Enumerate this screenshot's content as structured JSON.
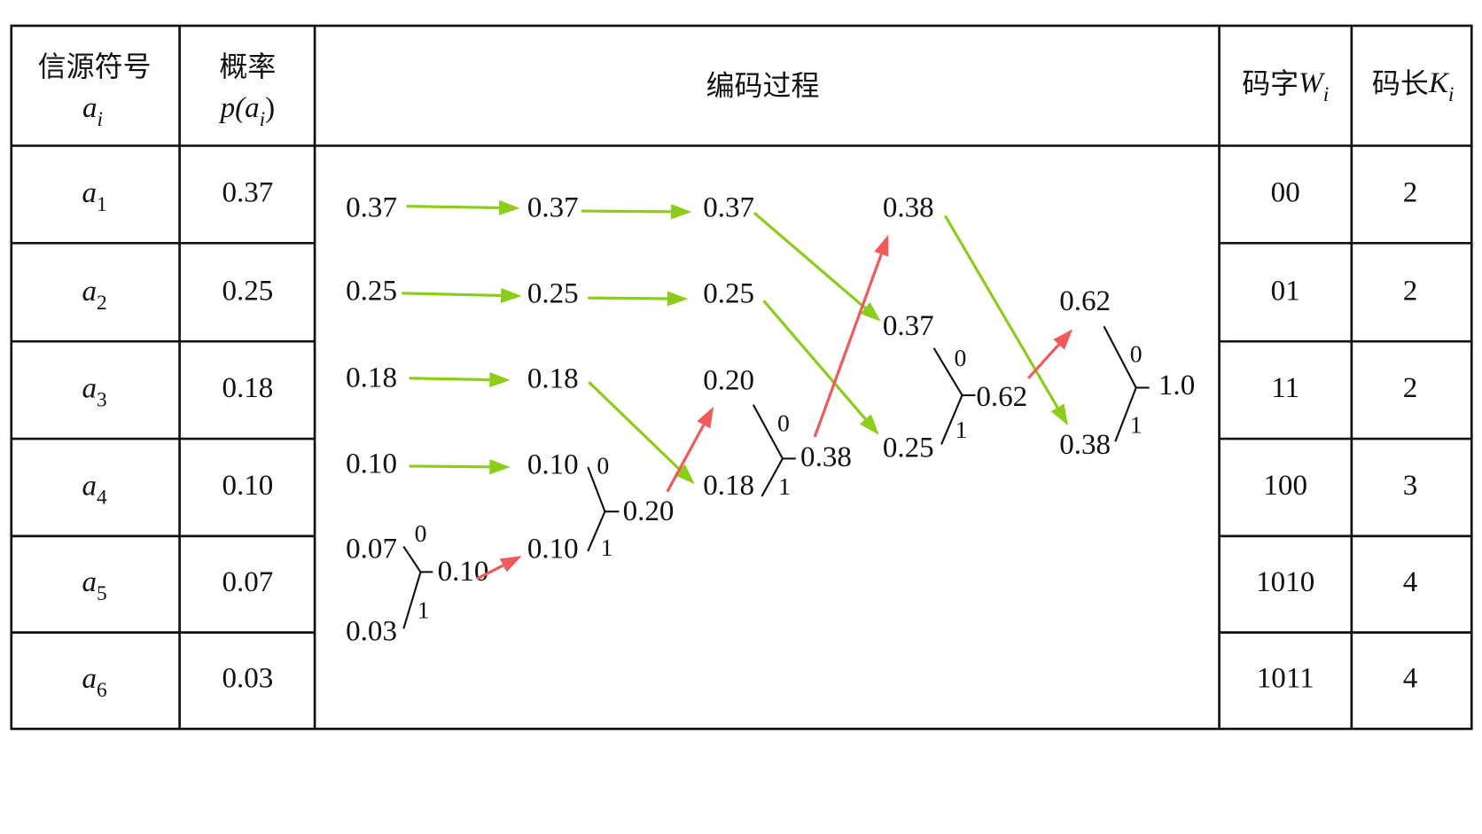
{
  "table": {
    "header": {
      "symbol": {
        "text": "信源符号",
        "var": "a",
        "sub": "i"
      },
      "probability": {
        "text": "概率",
        "prefix": "p(",
        "var": "a",
        "sub": "i",
        "suffix": ")"
      },
      "process": "编码过程",
      "codeword": {
        "text": "码字",
        "var": "W",
        "sub": "i"
      },
      "length": {
        "text": "码长",
        "var": "K",
        "sub": "i"
      }
    },
    "rows": [
      {
        "var": "a",
        "sub": "1",
        "probability": "0.37",
        "codeword": "00",
        "length": "2"
      },
      {
        "var": "a",
        "sub": "2",
        "probability": "0.25",
        "codeword": "01",
        "length": "2"
      },
      {
        "var": "a",
        "sub": "3",
        "probability": "0.18",
        "codeword": "11",
        "length": "2"
      },
      {
        "var": "a",
        "sub": "4",
        "probability": "0.10",
        "codeword": "100",
        "length": "3"
      },
      {
        "var": "a",
        "sub": "5",
        "probability": "0.07",
        "codeword": "1010",
        "length": "4"
      },
      {
        "var": "a",
        "sub": "6",
        "probability": "0.03",
        "codeword": "1011",
        "length": "4"
      }
    ]
  },
  "process": {
    "stages": [
      {
        "values": [
          "0.37",
          "0.25",
          "0.18",
          "0.10",
          "0.07",
          "0.03"
        ],
        "branch_labels": [
          "0",
          "1"
        ],
        "merged": "0.10"
      },
      {
        "values": [
          "0.37",
          "0.25",
          "0.18",
          "0.10",
          "0.10"
        ],
        "branch_labels": [
          "0",
          "1"
        ],
        "merged": "0.20"
      },
      {
        "values": [
          "0.37",
          "0.25",
          "0.20",
          "0.18"
        ],
        "branch_labels": [
          "0",
          "1"
        ],
        "merged": "0.38"
      },
      {
        "values": [
          "0.38",
          "0.37",
          "0.25"
        ],
        "branch_labels": [
          "0",
          "1"
        ],
        "merged": "0.62"
      },
      {
        "values": [
          "0.62",
          "0.38"
        ],
        "branch_labels": [
          "0",
          "1"
        ],
        "merged": "1.0"
      }
    ]
  }
}
